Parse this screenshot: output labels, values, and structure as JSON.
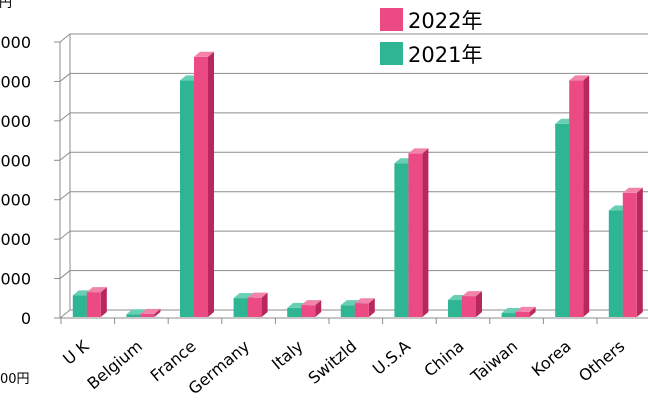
{
  "unit_fragments": {
    "top": "円",
    "bottom": "00円"
  },
  "colors": {
    "grid": "#8C8C8C",
    "background": "#FFFFFF"
  },
  "chart_data": {
    "type": "bar",
    "categories": [
      "U K",
      "Belgium",
      "France",
      "Germany",
      "Italy",
      "Switzld",
      "U.S.A",
      "China",
      "Taiwan",
      "Korea",
      "Others"
    ],
    "series": [
      {
        "name": "2021年",
        "color": "#2DB594",
        "side_color": "#1E8A6F",
        "top_color": "#67CFB3",
        "values": [
          550,
          70,
          6000,
          480,
          230,
          300,
          3900,
          430,
          100,
          4900,
          2700
        ]
      },
      {
        "name": "2022年",
        "color": "#EB4A83",
        "side_color": "#B8285E",
        "top_color": "#F283AB",
        "values": [
          630,
          80,
          6600,
          490,
          300,
          350,
          4150,
          530,
          130,
          6000,
          3150
        ]
      }
    ],
    "ylim": [
      0,
      7000
    ],
    "yticks": [
      0,
      1000,
      2000,
      3000,
      4000,
      5000,
      6000,
      7000
    ],
    "ytick_labels": [
      "0",
      "000",
      "000",
      "000",
      "000",
      "000",
      "000",
      "000"
    ],
    "grid": true,
    "legend": {
      "position": "top-right"
    }
  }
}
